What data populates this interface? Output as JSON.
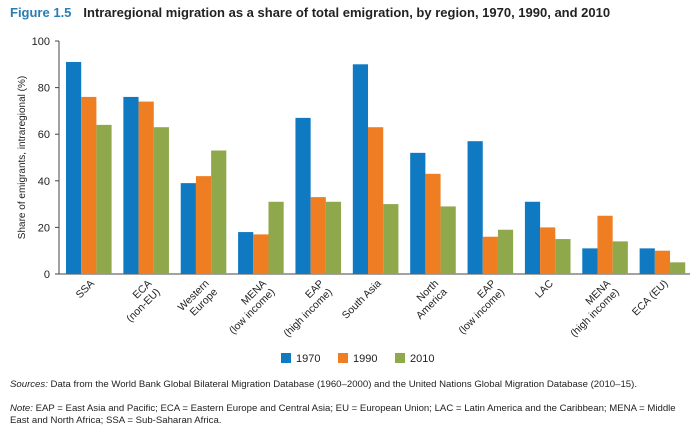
{
  "figure": {
    "label": "Figure 1.5",
    "title": "Intraregional migration as a share of total emigration, by region, 1970, 1990, and 2010"
  },
  "footer": {
    "sources_label": "Sources:",
    "sources_text": " Data from the World Bank Global Bilateral Migration Database (1960–2000) and the United Nations Global Migration Database (2010–15).",
    "note_label": "Note:",
    "note_text": " EAP = East Asia and Pacific; ECA = Eastern Europe and Central Asia; EU = European Union; LAC = Latin America and the Caribbean; MENA = Middle East and North Africa; SSA = Sub-Saharan Africa."
  },
  "colors": {
    "1970": "#0f7ac2",
    "1990": "#ef7d22",
    "2010": "#8fa84c",
    "title_accent": "#2a7db4"
  },
  "chart_data": {
    "type": "bar",
    "title": "Intraregional migration as a share of total emigration, by region, 1970, 1990, and 2010",
    "xlabel": "",
    "ylabel": "Share of emigrants, intraregional (%)",
    "ylim": [
      0,
      100
    ],
    "yticks": [
      0,
      20,
      40,
      60,
      80,
      100
    ],
    "grid": false,
    "legend_position": "bottom-center",
    "categories": [
      [
        "SSA"
      ],
      [
        "ECA",
        "(non-EU)"
      ],
      [
        "Western",
        "Europe"
      ],
      [
        "MENA",
        "(low income)"
      ],
      [
        "EAP",
        "(high income)"
      ],
      [
        "South Asia"
      ],
      [
        "North",
        "America"
      ],
      [
        "EAP",
        "(low income)"
      ],
      [
        "LAC"
      ],
      [
        "MENA",
        "(high income)"
      ],
      [
        "ECA (EU)"
      ]
    ],
    "series": [
      {
        "name": "1970",
        "values": [
          91,
          76,
          39,
          18,
          67,
          90,
          52,
          57,
          31,
          11,
          11
        ]
      },
      {
        "name": "1990",
        "values": [
          76,
          74,
          42,
          17,
          33,
          63,
          43,
          16,
          20,
          25,
          10
        ]
      },
      {
        "name": "2010",
        "values": [
          64,
          63,
          53,
          31,
          31,
          30,
          29,
          19,
          15,
          14,
          5
        ]
      }
    ]
  }
}
